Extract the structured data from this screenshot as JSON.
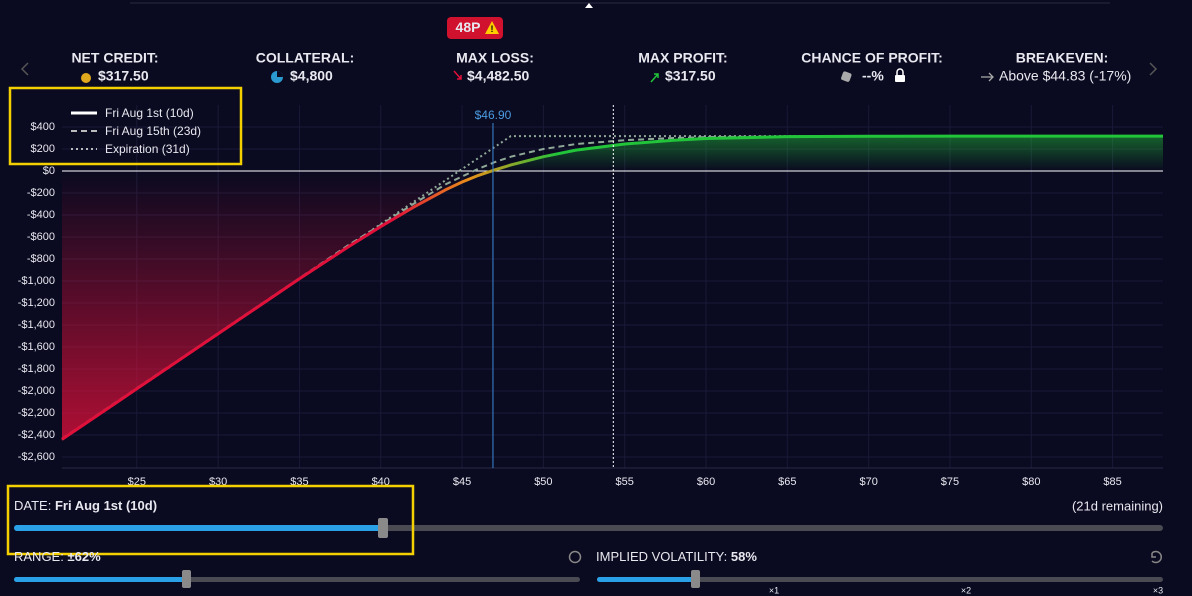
{
  "badge": "48P",
  "stats": [
    {
      "label": "NET CREDIT:",
      "value": "$317.50"
    },
    {
      "label": "COLLATERAL:",
      "value": "$4,800"
    },
    {
      "label": "MAX LOSS:",
      "value": "$4,482.50"
    },
    {
      "label": "MAX PROFIT:",
      "value": "$317.50"
    },
    {
      "label": "CHANCE OF PROFIT:",
      "value": "--%"
    },
    {
      "label": "BREAKEVEN:",
      "value": "Above $44.83 (-17%)"
    }
  ],
  "chart_data": {
    "type": "line",
    "x": [
      20.4,
      25,
      30,
      35,
      38,
      40,
      42,
      44,
      45,
      46,
      47,
      48,
      50,
      52,
      55,
      58,
      60,
      65,
      70,
      75,
      80,
      85,
      88.1
    ],
    "series": [
      {
        "name": "Fri Aug 1st (10d)",
        "color": "#ffffff",
        "style": "solid",
        "values": [
          -2440,
          -1980,
          -1480,
          -980,
          -690,
          -505,
          -330,
          -170,
          -100,
          -40,
          10,
          55,
          130,
          190,
          245,
          280,
          295,
          312,
          316,
          317,
          317.5,
          317.5,
          317.5
        ]
      },
      {
        "name": "Fri Aug 15th (23d)",
        "color": "#8fa898",
        "style": "dashed",
        "values": [
          -2435,
          -1975,
          -1475,
          -975,
          -675,
          -490,
          -300,
          -120,
          -50,
          20,
          80,
          130,
          200,
          245,
          280,
          300,
          308,
          315,
          317,
          317.5,
          317.5,
          317.5,
          317.5
        ]
      },
      {
        "name": "Expiration (31d)",
        "color": "#8fa898",
        "style": "dotted",
        "values": [
          -2442.5,
          -1982.5,
          -1482.5,
          -982.5,
          -682.5,
          -482.5,
          -282.5,
          -82.5,
          17.5,
          117.5,
          217.5,
          317.5,
          317.5,
          317.5,
          317.5,
          317.5,
          317.5,
          317.5,
          317.5,
          317.5,
          317.5,
          317.5,
          317.5
        ]
      }
    ],
    "loss_color": "#e0103a",
    "transition_color": "#e8901a",
    "profit_color": "#22c43a",
    "xlim": [
      20.4,
      88.1
    ],
    "xticks": [
      {
        "value": 25,
        "label": "$25"
      },
      {
        "value": 30,
        "label": "$30"
      },
      {
        "value": 35,
        "label": "$35"
      },
      {
        "value": 40,
        "label": "$40"
      },
      {
        "value": 45,
        "label": "$45"
      },
      {
        "value": 50,
        "label": "$50"
      },
      {
        "value": 55,
        "label": "$55"
      },
      {
        "value": 60,
        "label": "$60"
      },
      {
        "value": 65,
        "label": "$65"
      },
      {
        "value": 70,
        "label": "$70"
      },
      {
        "value": 75,
        "label": "$75"
      },
      {
        "value": 80,
        "label": "$80"
      },
      {
        "value": 85,
        "label": "$85"
      }
    ],
    "ylim": [
      -2700,
      600
    ],
    "yticks": [
      {
        "value": 400,
        "label": "$400"
      },
      {
        "value": 200,
        "label": "$200"
      },
      {
        "value": 0,
        "label": "$0"
      },
      {
        "value": -200,
        "label": "-$200"
      },
      {
        "value": -400,
        "label": "-$400"
      },
      {
        "value": -600,
        "label": "-$600"
      },
      {
        "value": -800,
        "label": "-$800"
      },
      {
        "value": -1000,
        "label": "-$1,000"
      },
      {
        "value": -1200,
        "label": "-$1,200"
      },
      {
        "value": -1400,
        "label": "-$1,400"
      },
      {
        "value": -1600,
        "label": "-$1,600"
      },
      {
        "value": -1800,
        "label": "-$1,800"
      },
      {
        "value": -2000,
        "label": "-$2,000"
      },
      {
        "value": -2200,
        "label": "-$2,200"
      },
      {
        "value": -2400,
        "label": "-$2,400"
      },
      {
        "value": -2600,
        "label": "-$2,600"
      }
    ],
    "current_price": {
      "value": 46.9,
      "label": "$46.90"
    },
    "reference_x": 54.3,
    "grid": true,
    "legend": "upper left"
  },
  "controls": {
    "date": {
      "label": "DATE:",
      "value": "Fri Aug 1st (10d)",
      "remaining": "(21d remaining)"
    },
    "range": {
      "label": "RANGE:",
      "value": "±62%"
    },
    "volatility": {
      "label": "IMPLIED VOLATILITY:",
      "value": "58%",
      "marks": [
        "×1",
        "×2",
        "×3"
      ]
    }
  }
}
